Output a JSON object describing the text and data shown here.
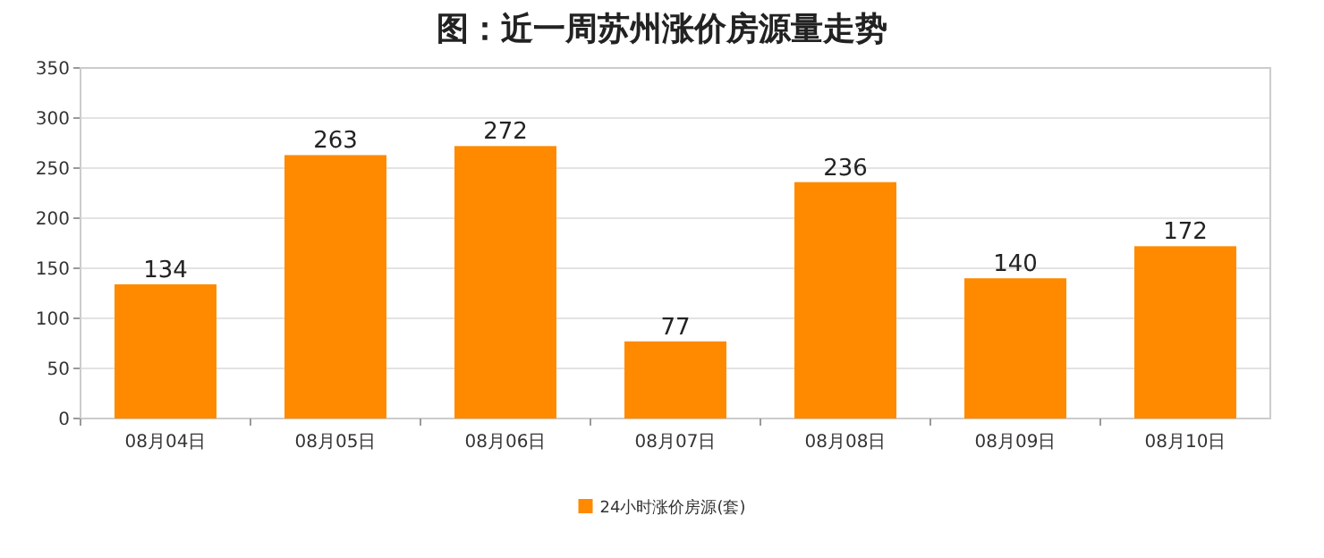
{
  "chart_data": {
    "type": "bar",
    "title": "图：近一周苏州涨价房源量走势",
    "categories": [
      "08月04日",
      "08月05日",
      "08月06日",
      "08月07日",
      "08月08日",
      "08月09日",
      "08月10日"
    ],
    "series": [
      {
        "name": "24小时涨价房源(套)",
        "color": "#ff8a00",
        "values": [
          134,
          263,
          272,
          77,
          236,
          140,
          172
        ]
      }
    ],
    "ylim": [
      0,
      350
    ],
    "yticks": [
      0,
      50,
      100,
      150,
      200,
      250,
      300,
      350
    ],
    "grid": "y",
    "legend": "bottom",
    "data_labels": true
  }
}
